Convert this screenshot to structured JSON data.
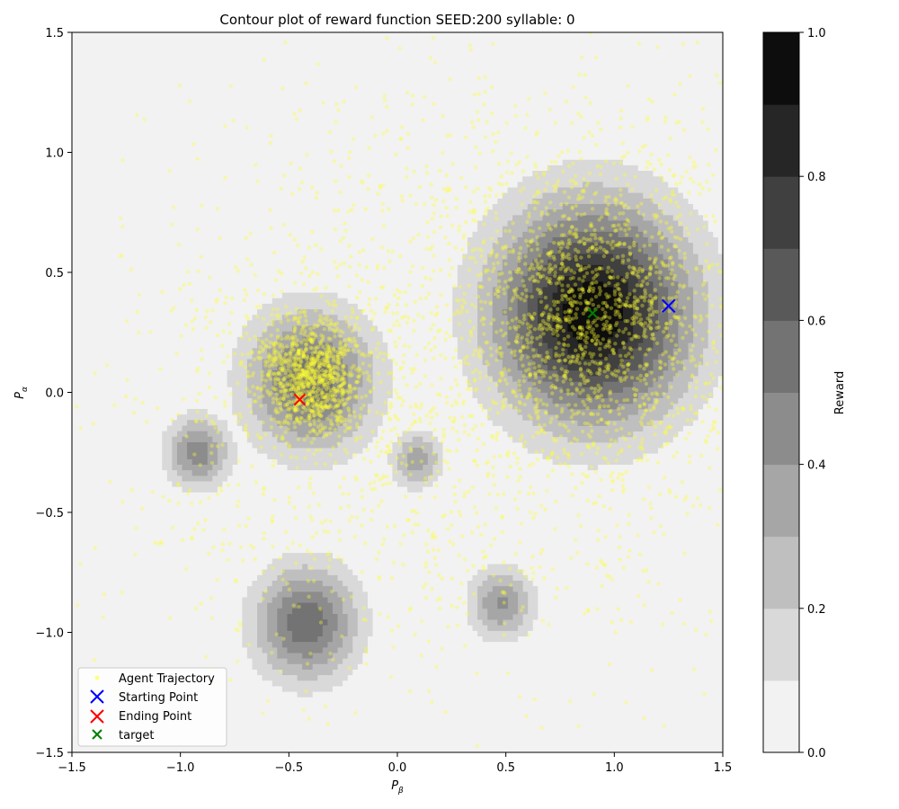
{
  "chart_data": {
    "type": "contour",
    "title": "Contour plot of reward function SEED:200 syllable: 0",
    "xlabel_base": "P",
    "xlabel_sub": "β",
    "ylabel_base": "P",
    "ylabel_sub": "α",
    "xlim": [
      -1.5,
      1.5
    ],
    "ylim": [
      -1.5,
      1.5
    ],
    "xticks": [
      -1.5,
      -1.0,
      -0.5,
      0.0,
      0.5,
      1.0,
      1.5
    ],
    "xtick_labels": [
      "−1.5",
      "−1.0",
      "−0.5",
      "0.0",
      "0.5",
      "1.0",
      "1.5"
    ],
    "yticks": [
      -1.5,
      -1.0,
      -0.5,
      0.0,
      0.5,
      1.0,
      1.5
    ],
    "ytick_labels": [
      "−1.5",
      "−1.0",
      "−0.5",
      "0.0",
      "0.5",
      "1.0",
      "1.5"
    ],
    "grid": false,
    "contour_levels": [
      0.0,
      0.1,
      0.2,
      0.3,
      0.4,
      0.5,
      0.6,
      0.7,
      0.8,
      0.9,
      1.0
    ],
    "level_colors": [
      "#f2f2f2",
      "#d9d9d9",
      "#bfbfbf",
      "#a6a6a6",
      "#8c8c8c",
      "#737373",
      "#595959",
      "#404040",
      "#262626",
      "#0d0d0d"
    ],
    "reward_peaks": [
      {
        "x": 0.9,
        "y": 0.33,
        "amplitude": 0.99,
        "sigma": 0.3
      },
      {
        "x": -0.4,
        "y": 0.05,
        "amplitude": 0.58,
        "sigma": 0.2
      },
      {
        "x": -0.42,
        "y": -0.96,
        "amplitude": 0.58,
        "sigma": 0.16
      },
      {
        "x": -0.92,
        "y": -0.25,
        "amplitude": 0.46,
        "sigma": 0.1
      },
      {
        "x": 0.48,
        "y": -0.88,
        "amplitude": 0.41,
        "sigma": 0.1
      },
      {
        "x": 0.09,
        "y": -0.28,
        "amplitude": 0.36,
        "sigma": 0.08
      }
    ],
    "colorbar": {
      "label": "Reward",
      "ticks": [
        0.0,
        0.2,
        0.4,
        0.6,
        0.8,
        1.0
      ],
      "tick_labels": [
        "0.0",
        "0.2",
        "0.4",
        "0.6",
        "0.8",
        "1.0"
      ]
    },
    "trajectory": {
      "color": "#ffff33",
      "clusters": [
        {
          "x": -0.4,
          "y": 0.07,
          "spread": 0.12,
          "count": 900
        },
        {
          "x": 0.9,
          "y": 0.33,
          "spread": 0.32,
          "count": 1300
        },
        {
          "x": 0.75,
          "y": 0.2,
          "spread": 0.7,
          "count": 1000
        },
        {
          "x": -0.3,
          "y": -0.1,
          "spread": 0.5,
          "count": 700
        },
        {
          "x": 0.0,
          "y": 0.0,
          "spread": 0.9,
          "count": 300
        }
      ]
    },
    "starting_point": {
      "x": 1.25,
      "y": 0.36,
      "color": "#0000ff"
    },
    "ending_point": {
      "x": -0.45,
      "y": -0.03,
      "color": "#ff0000"
    },
    "target": {
      "x": 0.9,
      "y": 0.33,
      "color": "#008000"
    },
    "legend": {
      "placement": "lower-left",
      "entries": [
        {
          "label": "Agent Trajectory",
          "marker": "dot",
          "color": "#ffff33"
        },
        {
          "label": "Starting Point",
          "marker": "x",
          "color": "#0000ff"
        },
        {
          "label": "Ending Point",
          "marker": "x",
          "color": "#ff0000"
        },
        {
          "label": "target",
          "marker": "x-small",
          "color": "#008000"
        }
      ]
    }
  }
}
